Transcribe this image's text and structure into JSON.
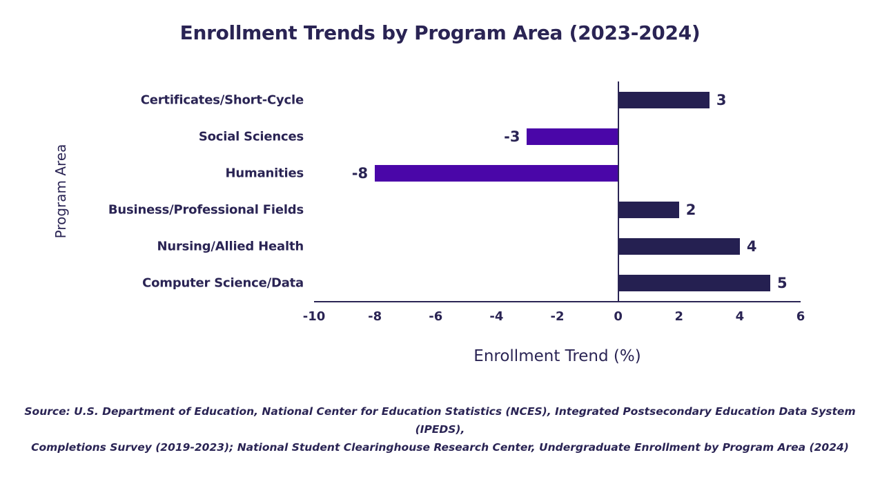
{
  "page": {
    "background": "#ffffff"
  },
  "chart_data": {
    "type": "bar",
    "orientation": "horizontal",
    "title": "Enrollment Trends by Program Area (2023-2024)",
    "xlabel": "Enrollment Trend (%)",
    "ylabel": "Program Area",
    "categories": [
      "Certificates/Short-Cycle",
      "Social Sciences",
      "Humanities",
      "Business/Professional Fields",
      "Nursing/Allied Health",
      "Computer Science/Data"
    ],
    "values": [
      3,
      -3,
      -8,
      2,
      4,
      5
    ],
    "value_labels": [
      "3",
      "-3",
      "-8",
      "2",
      "4",
      "5"
    ],
    "xlim": [
      -10,
      6
    ],
    "xticks": [
      "-10",
      "-8",
      "-6",
      "-4",
      "-2",
      "0",
      "2",
      "4",
      "6"
    ],
    "grid": false,
    "legend": "none",
    "colors": {
      "bar_positive": "#252051",
      "bar_negative": "#4a06a8",
      "axis": "#2a2454",
      "text": "#2a2454"
    }
  },
  "source_note": {
    "lines": [
      "Source: U.S. Department of Education, National Center for Education Statistics (NCES), Integrated Postsecondary Education Data System (IPEDS),",
      "Completions Survey (2019-2023); National Student Clearinghouse Research Center, Undergraduate Enrollment by Program Area (2024)"
    ]
  }
}
